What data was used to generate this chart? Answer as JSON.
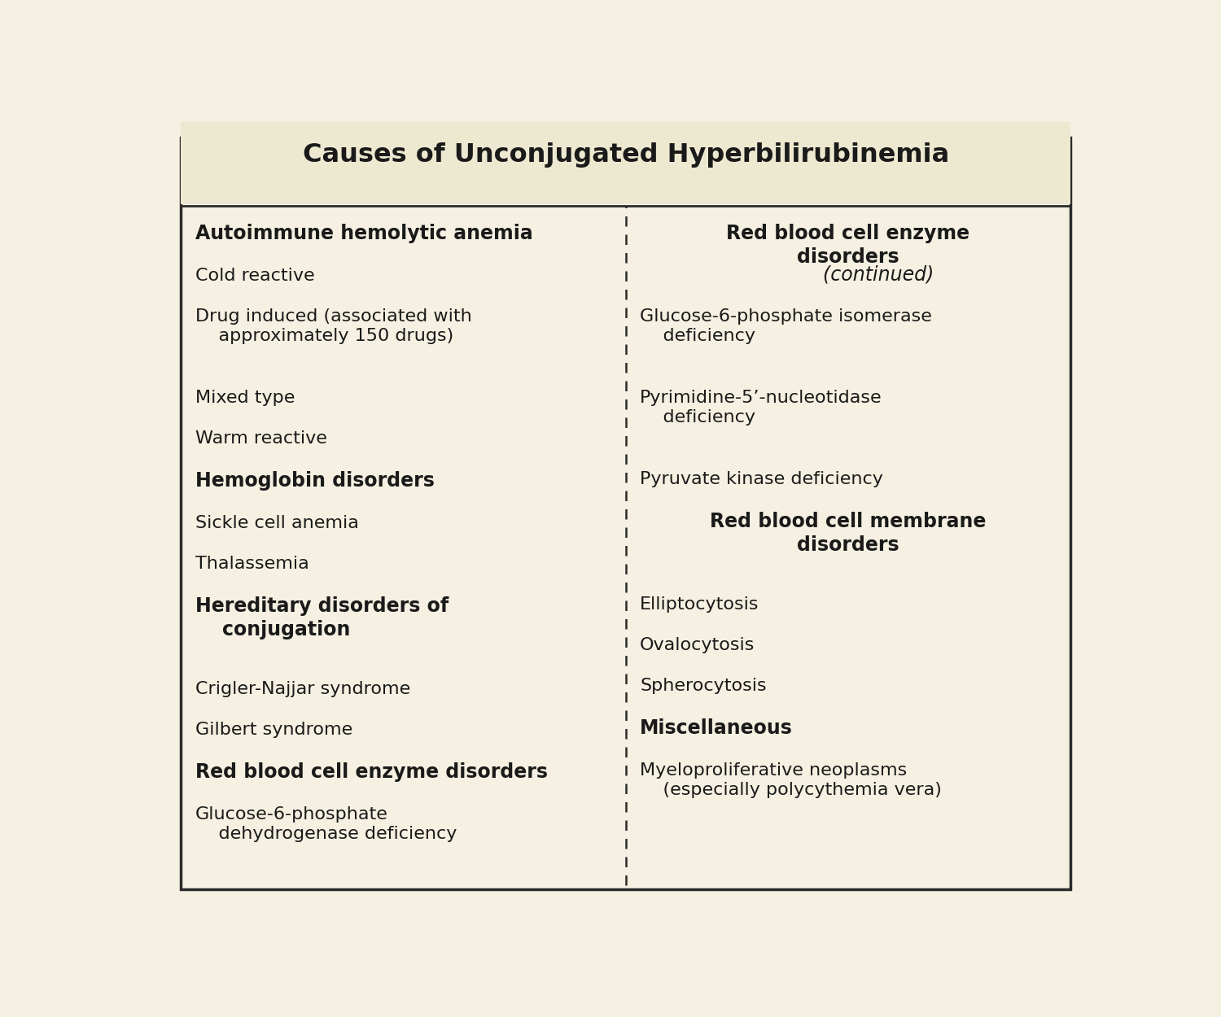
{
  "title": "Causes of Unconjugated Hyperbilirubinemia",
  "bg_color": "#f5f0e1",
  "title_bg_color": "#ede8d0",
  "border_color": "#2b2b2b",
  "text_color": "#1a1a1a",
  "title_fontsize": 23,
  "header_fontsize": 17,
  "body_fontsize": 16,
  "left_column": [
    {
      "text": "Autoimmune hemolytic anemia",
      "bold": true,
      "indent": false
    },
    {
      "text": "Cold reactive",
      "bold": false,
      "indent": false
    },
    {
      "text": "Drug induced (associated with\n    approximately 150 drugs)",
      "bold": false,
      "indent": false
    },
    {
      "text": "Mixed type",
      "bold": false,
      "indent": false
    },
    {
      "text": "Warm reactive",
      "bold": false,
      "indent": false
    },
    {
      "text": "Hemoglobin disorders",
      "bold": true,
      "indent": false
    },
    {
      "text": "Sickle cell anemia",
      "bold": false,
      "indent": false
    },
    {
      "text": "Thalassemia",
      "bold": false,
      "indent": false
    },
    {
      "text": "Hereditary disorders of\n    conjugation",
      "bold": true,
      "indent": false
    },
    {
      "text": "Crigler-Najjar syndrome",
      "bold": false,
      "indent": false
    },
    {
      "text": "Gilbert syndrome",
      "bold": false,
      "indent": false
    },
    {
      "text": "Red blood cell enzyme disorders",
      "bold": true,
      "indent": false
    },
    {
      "text": "Glucose-6-phosphate\n    dehydrogenase deficiency",
      "bold": false,
      "indent": false
    }
  ],
  "right_column": [
    {
      "text": "Red blood cell enzyme\ndisorders",
      "italic_text": " (continued)",
      "bold": true,
      "center": true
    },
    {
      "text": "Glucose-6-phosphate isomerase\n    deficiency",
      "bold": false,
      "center": false
    },
    {
      "text": "Pyrimidine-5’-nucleotidase\n    deficiency",
      "bold": false,
      "center": false
    },
    {
      "text": "Pyruvate kinase deficiency",
      "bold": false,
      "center": false
    },
    {
      "text": "Red blood cell membrane\ndisorders",
      "bold": true,
      "center": true
    },
    {
      "text": "Elliptocytosis",
      "bold": false,
      "center": false
    },
    {
      "text": "Ovalocytosis",
      "bold": false,
      "center": false
    },
    {
      "text": "Spherocytosis",
      "bold": false,
      "center": false
    },
    {
      "text": "Miscellaneous",
      "bold": true,
      "center": false
    },
    {
      "text": "Myeloproliferative neoplasms\n    (especially polycythemia vera)",
      "bold": false,
      "center": false
    }
  ]
}
